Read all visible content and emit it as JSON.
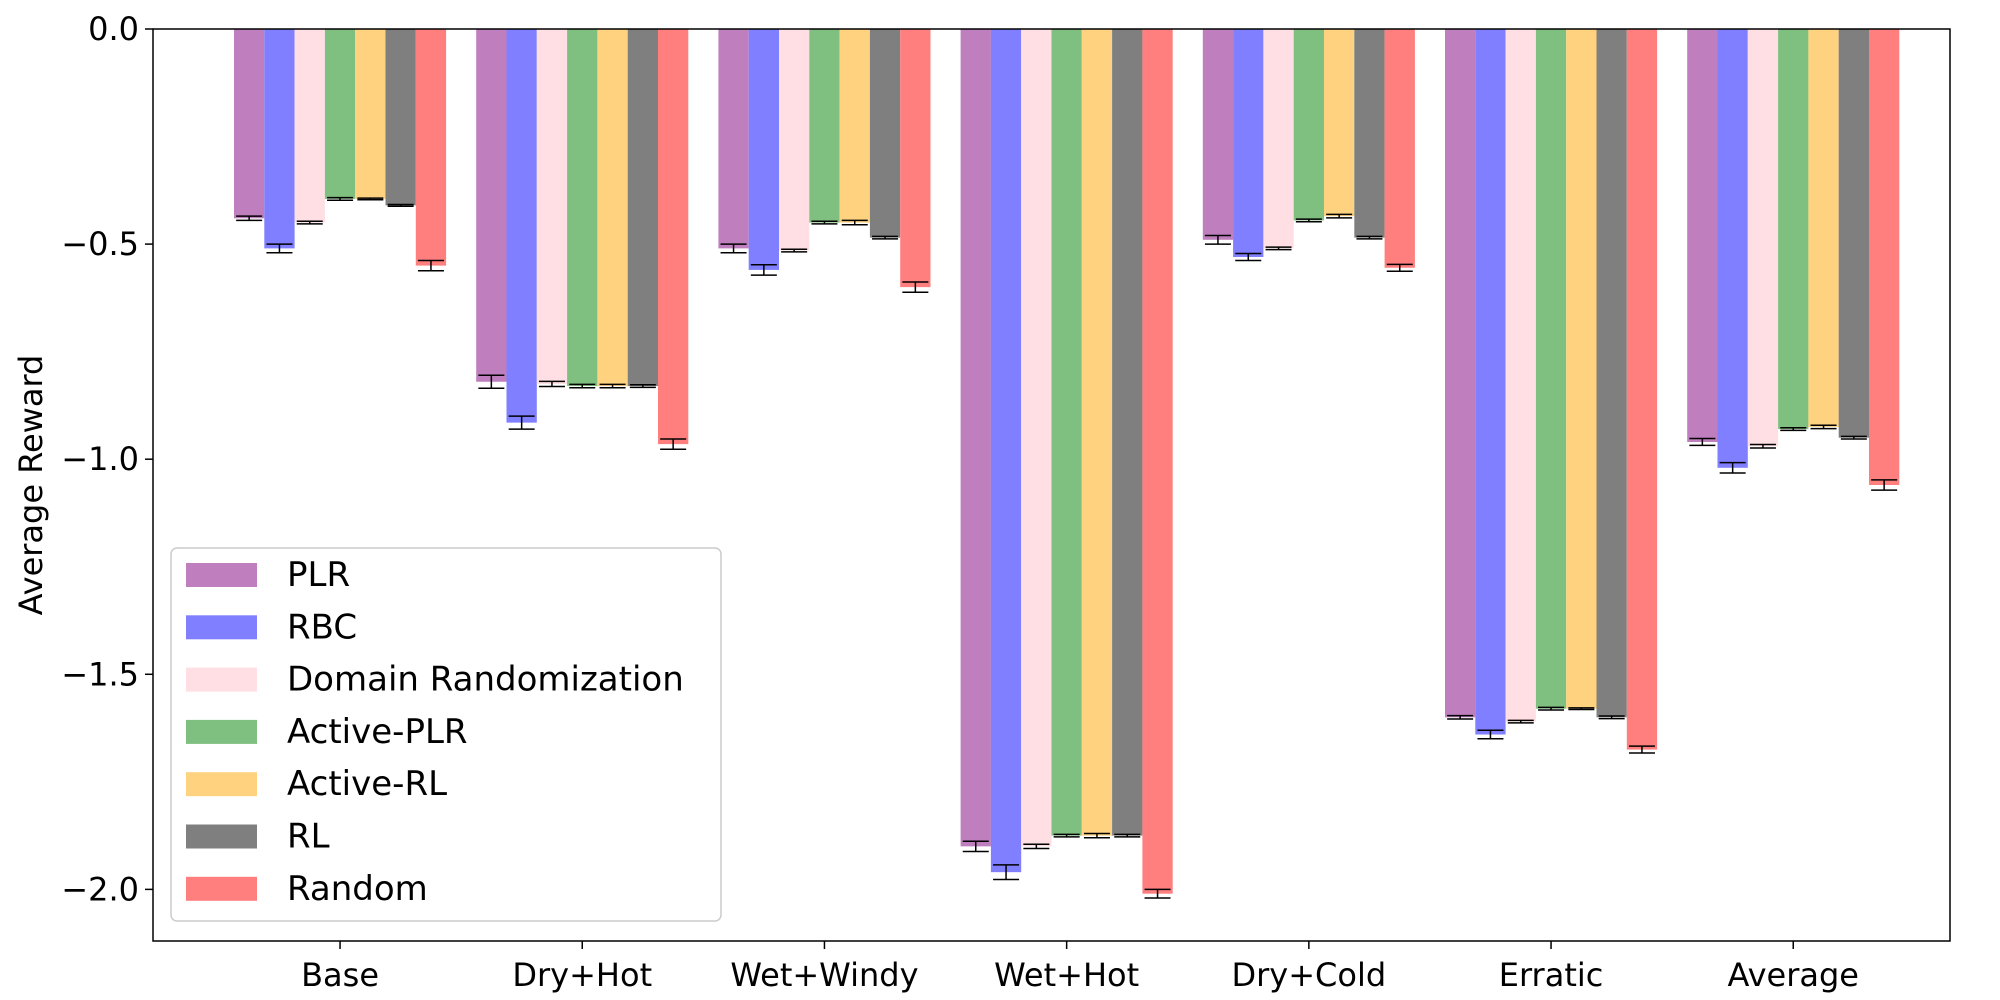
{
  "chart_data": {
    "type": "bar",
    "title": "",
    "xlabel": "",
    "ylabel": "Average Reward",
    "ylim": [
      -2.12,
      0.0
    ],
    "yticks": [
      0.0,
      -0.5,
      -1.0,
      -1.5,
      -2.0
    ],
    "ytick_labels": [
      "0.0",
      "−0.5",
      "−1.0",
      "−1.5",
      "−2.0"
    ],
    "grid": false,
    "legend_position": "lower-left",
    "categories": [
      "Base",
      "Dry+Hot",
      "Wet+Windy",
      "Wet+Hot",
      "Dry+Cold",
      "Erratic",
      "Average"
    ],
    "series": [
      {
        "name": "PLR",
        "color": "#bf7fbf",
        "values": [
          -0.44,
          -0.82,
          -0.51,
          -1.9,
          -0.49,
          -1.6,
          -0.96
        ],
        "errors": [
          0.005,
          0.015,
          0.01,
          0.012,
          0.01,
          0.004,
          0.008
        ]
      },
      {
        "name": "RBC",
        "color": "#7f7fff",
        "values": [
          -0.51,
          -0.915,
          -0.56,
          -1.96,
          -0.53,
          -1.64,
          -1.02
        ],
        "errors": [
          0.01,
          0.015,
          0.012,
          0.017,
          0.008,
          0.01,
          0.012
        ]
      },
      {
        "name": "Domain Randomization",
        "color": "#ffdfe4",
        "values": [
          -0.45,
          -0.825,
          -0.515,
          -1.9,
          -0.51,
          -1.61,
          -0.97
        ],
        "errors": [
          0.003,
          0.006,
          0.003,
          0.005,
          0.003,
          0.003,
          0.004
        ]
      },
      {
        "name": "Active-PLR",
        "color": "#7fbf7f",
        "values": [
          -0.395,
          -0.83,
          -0.45,
          -1.875,
          -0.445,
          -1.58,
          -0.93
        ],
        "errors": [
          0.003,
          0.004,
          0.003,
          0.003,
          0.003,
          0.003,
          0.003
        ]
      },
      {
        "name": "Active-RL",
        "color": "#ffd27f",
        "values": [
          -0.395,
          -0.83,
          -0.45,
          -1.875,
          -0.435,
          -1.58,
          -0.925
        ],
        "errors": [
          0.002,
          0.004,
          0.005,
          0.005,
          0.004,
          0.002,
          0.004
        ]
      },
      {
        "name": "RL",
        "color": "#7f7f7f",
        "values": [
          -0.41,
          -0.83,
          -0.485,
          -1.875,
          -0.485,
          -1.6,
          -0.95
        ],
        "errors": [
          0.002,
          0.003,
          0.003,
          0.003,
          0.003,
          0.003,
          0.003
        ]
      },
      {
        "name": "Random",
        "color": "#ff7f7f",
        "values": [
          -0.55,
          -0.965,
          -0.6,
          -2.01,
          -0.555,
          -1.675,
          -1.06
        ],
        "errors": [
          0.012,
          0.012,
          0.012,
          0.01,
          0.008,
          0.008,
          0.012
        ]
      }
    ]
  }
}
